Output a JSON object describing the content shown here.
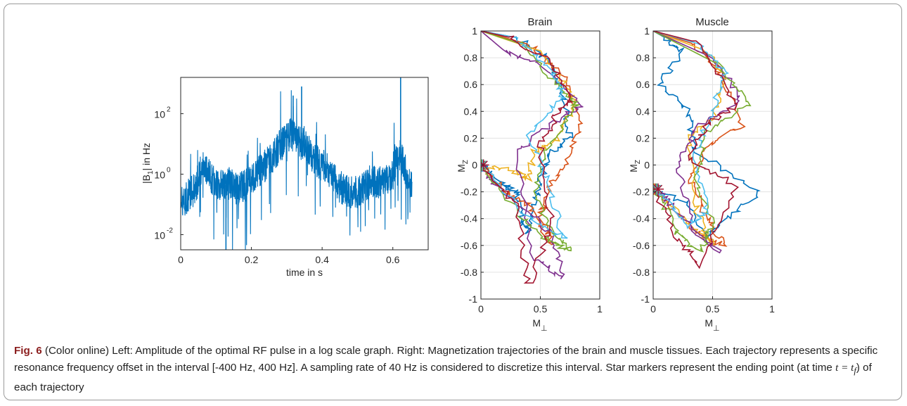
{
  "figure": {
    "caption_label": "Fig. 6",
    "caption_text": "(Color online) Left: Amplitude of the optimal RF pulse in a log scale graph. Right: Magnetization trajectories of the brain and muscle tissues. Each trajectory represents a specific resonance frequency offset in the interval [-400 Hz, 400 Hz]. A sampling rate of 40 Hz is considered to discretize this interval. Star markers represent the ending point (at time ",
    "caption_math": "t = t",
    "caption_math_sub": "f",
    "caption_tail": ") of each trajectory"
  },
  "chart_data": [
    {
      "type": "line",
      "title": "",
      "xlabel": "time in s",
      "ylabel": "|B",
      "ylabel_sub": "1",
      "ylabel_tail": "| in Hz",
      "ylog": true,
      "xlim": [
        0,
        0.7
      ],
      "ylim_log10": [
        -2.5,
        3.2
      ],
      "xticks": [
        0,
        0.2,
        0.4,
        0.6
      ],
      "xtick_labels": [
        "0",
        "0.2",
        "0.4",
        "0.6"
      ],
      "yticks_log10": [
        -2,
        0,
        2
      ],
      "ytick_bases": [
        "10",
        "10",
        "10"
      ],
      "ytick_exps": [
        "-2",
        "0",
        "2"
      ],
      "color": "#0072bd",
      "series": [
        {
          "x": [
            0.0,
            0.01,
            0.02,
            0.03,
            0.04,
            0.05,
            0.06,
            0.07,
            0.08,
            0.1,
            0.12,
            0.14,
            0.16,
            0.18,
            0.2,
            0.22,
            0.24,
            0.26,
            0.28,
            0.3,
            0.31,
            0.32,
            0.33,
            0.34,
            0.35,
            0.36,
            0.38,
            0.4,
            0.42,
            0.44,
            0.46,
            0.48,
            0.5,
            0.52,
            0.54,
            0.56,
            0.58,
            0.6,
            0.61,
            0.62,
            0.63,
            0.64,
            0.655
          ],
          "y_log10": [
            -0.8,
            -0.9,
            -0.7,
            -0.6,
            -0.5,
            -0.2,
            0.3,
            0.1,
            0.0,
            -0.3,
            -0.4,
            -0.3,
            -0.5,
            -0.4,
            -0.2,
            0.1,
            0.3,
            0.6,
            0.9,
            1.2,
            1.3,
            1.2,
            1.1,
            1.0,
            1.1,
            0.8,
            0.5,
            0.3,
            0.1,
            -0.3,
            -0.5,
            -0.6,
            -0.6,
            -0.4,
            -0.2,
            -0.3,
            -0.2,
            0.0,
            0.4,
            0.6,
            0.4,
            -0.1,
            -0.3
          ]
        }
      ]
    },
    {
      "type": "line",
      "title": "Brain",
      "xlabel": "M",
      "xlabel_sub": "⊥",
      "ylabel": "M",
      "ylabel_sub": "Z",
      "xlim": [
        0,
        1
      ],
      "ylim": [
        -1,
        1
      ],
      "grid": true,
      "xticks": [
        0,
        0.5,
        1
      ],
      "xtick_labels": [
        "0",
        "0.5",
        "1"
      ],
      "yticks": [
        -1,
        -0.8,
        -0.6,
        -0.4,
        -0.2,
        0,
        0.2,
        0.4,
        0.6,
        0.8,
        1
      ],
      "ytick_labels": [
        "-1",
        "-0.8",
        "-0.6",
        "-0.4",
        "-0.2",
        "0",
        "0.2",
        "0.4",
        "0.6",
        "0.8",
        "1"
      ],
      "end_marker_point": [
        0.0,
        0.0
      ],
      "colors": [
        "#0072bd",
        "#d95319",
        "#edb120",
        "#7e2f8e",
        "#77ac30",
        "#4dbeee",
        "#a2142f"
      ],
      "series": [
        {
          "x": [
            0.0,
            0.3,
            0.55,
            0.7,
            0.75,
            0.6,
            0.5,
            0.45,
            0.4,
            0.35,
            0.3,
            0.2,
            0.0
          ],
          "y": [
            1.0,
            0.95,
            0.8,
            0.5,
            0.2,
            0.1,
            -0.1,
            -0.3,
            -0.5,
            -0.4,
            -0.2,
            -0.15,
            0.0
          ]
        },
        {
          "x": [
            0.0,
            0.4,
            0.7,
            0.85,
            0.7,
            0.55,
            0.5,
            0.6,
            0.4,
            0.2,
            0.0
          ],
          "y": [
            1.0,
            0.9,
            0.65,
            0.3,
            0.0,
            -0.2,
            -0.4,
            -0.6,
            -0.3,
            -0.2,
            0.0
          ]
        },
        {
          "x": [
            0.0,
            0.5,
            0.75,
            0.8,
            0.65,
            0.45,
            0.4,
            0.3,
            0.0
          ],
          "y": [
            1.0,
            0.85,
            0.55,
            0.45,
            0.2,
            0.1,
            -0.1,
            -0.05,
            0.0
          ]
        },
        {
          "x": [
            0.0,
            0.2,
            0.5,
            0.85,
            0.6,
            0.3,
            0.45,
            0.7,
            0.6,
            0.1,
            0.0
          ],
          "y": [
            1.0,
            0.85,
            0.75,
            0.45,
            0.3,
            0.1,
            -0.7,
            -0.85,
            -0.5,
            -0.15,
            0.0
          ]
        },
        {
          "x": [
            0.0,
            0.35,
            0.65,
            0.8,
            0.55,
            0.45,
            0.6,
            0.75,
            0.55,
            0.35,
            0.0
          ],
          "y": [
            1.0,
            0.9,
            0.6,
            0.45,
            0.1,
            -0.2,
            -0.5,
            -0.65,
            -0.55,
            -0.4,
            0.0
          ]
        },
        {
          "x": [
            0.0,
            0.3,
            0.6,
            0.7,
            0.4,
            0.55,
            0.7,
            0.4,
            0.0
          ],
          "y": [
            1.0,
            0.95,
            0.7,
            0.5,
            0.25,
            -0.1,
            -0.55,
            -0.4,
            0.0
          ]
        },
        {
          "x": [
            0.0,
            0.25,
            0.6,
            0.75,
            0.65,
            0.5,
            0.6,
            0.4,
            0.3,
            0.0
          ],
          "y": [
            1.0,
            0.95,
            0.75,
            0.5,
            0.4,
            0.15,
            -0.45,
            -0.9,
            -0.3,
            0.0
          ]
        }
      ]
    },
    {
      "type": "line",
      "title": "Muscle",
      "xlabel": "M",
      "xlabel_sub": "⊥",
      "ylabel": "M",
      "ylabel_sub": "Z",
      "xlim": [
        0,
        1
      ],
      "ylim": [
        -1,
        1
      ],
      "grid": true,
      "xticks": [
        0,
        0.5,
        1
      ],
      "xtick_labels": [
        "0",
        "0.5",
        "1"
      ],
      "yticks": [
        -1,
        -0.8,
        -0.6,
        -0.4,
        -0.2,
        0,
        0.2,
        0.4,
        0.6,
        0.8,
        1
      ],
      "ytick_labels": [
        "-1",
        "-0.8",
        "-0.6",
        "-0.4",
        "-0.2",
        "0",
        "0.2",
        "0.4",
        "0.6",
        "0.8",
        "1"
      ],
      "end_marker_point": [
        0.02,
        -0.18
      ],
      "colors": [
        "#0072bd",
        "#d95319",
        "#edb120",
        "#7e2f8e",
        "#77ac30",
        "#4dbeee",
        "#a2142f"
      ],
      "series": [
        {
          "x": [
            0.0,
            0.1,
            0.25,
            0.05,
            0.3,
            0.35,
            0.9,
            0.55,
            0.45,
            0.3,
            0.02
          ],
          "y": [
            1.0,
            0.95,
            0.85,
            0.6,
            0.4,
            0.1,
            -0.2,
            -0.45,
            -0.55,
            -0.3,
            -0.18
          ]
        },
        {
          "x": [
            0.0,
            0.35,
            0.55,
            0.75,
            0.45,
            0.3,
            0.45,
            0.6,
            0.35,
            0.02
          ],
          "y": [
            1.0,
            0.9,
            0.7,
            0.3,
            0.15,
            -0.1,
            -0.4,
            -0.6,
            -0.5,
            -0.18
          ]
        },
        {
          "x": [
            0.0,
            0.45,
            0.6,
            0.5,
            0.3,
            0.35,
            0.5,
            0.25,
            0.02
          ],
          "y": [
            1.0,
            0.85,
            0.65,
            0.35,
            0.2,
            -0.3,
            -0.6,
            -0.4,
            -0.18
          ]
        },
        {
          "x": [
            0.0,
            0.5,
            0.75,
            0.4,
            0.2,
            0.35,
            0.55,
            0.15,
            0.02
          ],
          "y": [
            1.0,
            0.8,
            0.5,
            0.3,
            0.0,
            -0.5,
            -0.65,
            -0.3,
            -0.18
          ]
        },
        {
          "x": [
            0.0,
            0.55,
            0.8,
            0.45,
            0.35,
            0.5,
            0.4,
            0.2,
            0.02
          ],
          "y": [
            1.0,
            0.75,
            0.45,
            0.25,
            -0.1,
            -0.45,
            -0.65,
            -0.5,
            -0.18
          ]
        },
        {
          "x": [
            0.0,
            0.4,
            0.6,
            0.5,
            0.35,
            0.45,
            0.3,
            0.02
          ],
          "y": [
            1.0,
            0.9,
            0.7,
            0.4,
            0.1,
            -0.35,
            -0.45,
            -0.18
          ]
        },
        {
          "x": [
            0.0,
            0.35,
            0.7,
            0.45,
            0.3,
            0.7,
            0.4,
            0.2,
            0.02
          ],
          "y": [
            1.0,
            0.92,
            0.45,
            0.3,
            0.05,
            -0.15,
            -0.75,
            -0.55,
            -0.18
          ]
        }
      ]
    }
  ]
}
